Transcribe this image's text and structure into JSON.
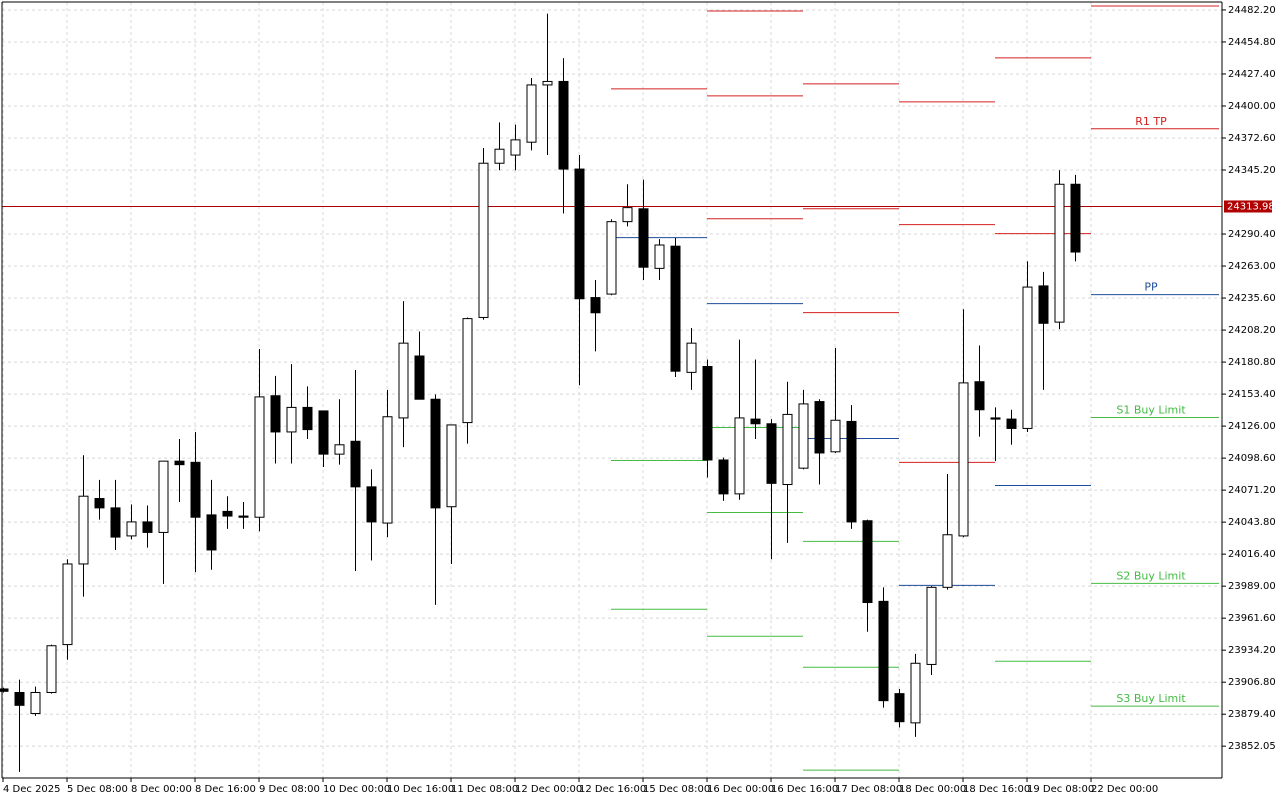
{
  "chart_data": {
    "type": "candlestick",
    "categories": [
      "4 Dec 2025",
      null,
      null,
      null,
      "5 Dec 08:00",
      null,
      null,
      null,
      "8 Dec 00:00",
      null,
      null,
      null,
      "8 Dec 16:00",
      null,
      null,
      null,
      "9 Dec 08:00",
      null,
      null,
      null,
      "10 Dec 00:00",
      null,
      null,
      null,
      "10 Dec 16:00",
      null,
      null,
      null,
      "11 Dec 08:00",
      null,
      null,
      null,
      "12 Dec 00:00",
      null,
      null,
      null,
      "12 Dec 16:00",
      null,
      null,
      null,
      "15 Dec 08:00",
      null,
      null,
      null,
      "16 Dec 00:00",
      null,
      null,
      null,
      "16 Dec 16:00",
      null,
      null,
      null,
      "17 Dec 08:00",
      null,
      null,
      null,
      "18 Dec 00:00",
      null,
      null,
      null,
      "18 Dec 16:00",
      null,
      null,
      null,
      "19 Dec 08:00",
      null,
      null,
      null,
      "22 Dec 00:00"
    ],
    "open": [
      23901,
      23898,
      23880,
      23898,
      23939,
      24008,
      24064,
      24056,
      24032,
      24044,
      24035,
      24096,
      24095,
      24050,
      24053,
      24049,
      24048,
      24152,
      24121,
      24142,
      24139,
      24102,
      24113,
      24074,
      24043,
      24133,
      24186,
      24149,
      24057,
      24129,
      24219,
      24351,
      24358,
      24369,
      24418,
      24421,
      24346,
      24236,
      24239,
      24301,
      24312,
      24261,
      24280,
      24172,
      24177,
      24097,
      24068,
      24132,
      24128,
      24076,
      24090,
      24147,
      24104,
      24130,
      24045,
      23976,
      23897,
      23872,
      23922,
      23988,
      24032,
      24164,
      24133,
      24132,
      24124,
      24246,
      24215,
      24333,
      null
    ],
    "high": [
      23902,
      23909,
      23903,
      23939,
      24012,
      24101,
      24080,
      24080,
      24059,
      24058,
      24096,
      24115,
      24121,
      24080,
      24066,
      24061,
      24192,
      24169,
      24179,
      24160,
      24139,
      24149,
      24174,
      24089,
      24157,
      24233,
      24207,
      24153,
      24127,
      24219,
      24364,
      24386,
      24384,
      24424,
      24479,
      24441,
      24358,
      24251,
      24303,
      24333,
      24337,
      24286,
      24287,
      24210,
      24183,
      24099,
      24200,
      24183,
      24132,
      24164,
      24157,
      24149,
      24193,
      24144,
      24046,
      23988,
      23901,
      23931,
      23989,
      24085,
      24226,
      24195,
      24142,
      24140,
      24267,
      24258,
      24345,
      24341,
      null
    ],
    "low": [
      23898,
      23830,
      23878,
      23897,
      23926,
      23980,
      24046,
      24020,
      24029,
      24022,
      23991,
      24061,
      24001,
      24003,
      24038,
      24038,
      24036,
      24094,
      24094,
      24115,
      24091,
      24093,
      24002,
      24011,
      24031,
      24108,
      24149,
      23973,
      24008,
      24111,
      24217,
      24345,
      24345,
      24362,
      24358,
      24308,
      24161,
      24190,
      24238,
      24297,
      24251,
      24251,
      24168,
      24157,
      24082,
      24062,
      24063,
      24115,
      24012,
      24026,
      24089,
      24076,
      24103,
      24038,
      23950,
      23885,
      23868,
      23860,
      23913,
      23986,
      24031,
      24117,
      24096,
      24110,
      24121,
      24157,
      24209,
      24267,
      null
    ],
    "close": [
      23899,
      23887,
      23898,
      23938,
      24008,
      24066,
      24056,
      24031,
      24044,
      24035,
      24096,
      24093,
      24048,
      24020,
      24049,
      24048,
      24151,
      24121,
      24142,
      24123,
      24102,
      24110,
      24074,
      24044,
      24134,
      24197,
      24149,
      24056,
      24127,
      24218,
      24351,
      24363,
      24371,
      24418,
      24421,
      24346,
      24235,
      24223,
      24301,
      24313,
      24262,
      24281,
      24173,
      24197,
      24097,
      24068,
      24133,
      24128,
      24077,
      24136,
      24145,
      24103,
      24131,
      24044,
      23975,
      23891,
      23873,
      23923,
      23988,
      24033,
      24163,
      24140,
      24132,
      24124,
      24245,
      24214,
      24333,
      24275,
      null
    ],
    "bull_color": "#ffffff",
    "bear_color": "#000000",
    "ylim": [
      23824.8,
      24489.0
    ],
    "yticks": [
      {
        "value": 24482.2,
        "label": "24482.20"
      },
      {
        "value": 24454.8,
        "label": "24454.80"
      },
      {
        "value": 24427.4,
        "label": "24427.40"
      },
      {
        "value": 24400,
        "label": "24400.00"
      },
      {
        "value": 24372.6,
        "label": "24372.60"
      },
      {
        "value": 24345.2,
        "label": "24345.20"
      },
      {
        "value": 24290.4,
        "label": "24290.40"
      },
      {
        "value": 24263,
        "label": "24263.00"
      },
      {
        "value": 24235.6,
        "label": "24235.60"
      },
      {
        "value": 24208.2,
        "label": "24208.20"
      },
      {
        "value": 24180.8,
        "label": "24180.80"
      },
      {
        "value": 24153.4,
        "label": "24153.40"
      },
      {
        "value": 24126,
        "label": "24126.00"
      },
      {
        "value": 24098.6,
        "label": "24098.60"
      },
      {
        "value": 24071.2,
        "label": "24071.20"
      },
      {
        "value": 24043.8,
        "label": "24043.80"
      },
      {
        "value": 24016.4,
        "label": "24016.40"
      },
      {
        "value": 23989,
        "label": "23989.00"
      },
      {
        "value": 23961.6,
        "label": "23961.60"
      },
      {
        "value": 23934.2,
        "label": "23934.20"
      },
      {
        "value": 23906.8,
        "label": "23906.80"
      },
      {
        "value": 23879.4,
        "label": "23879.40"
      },
      {
        "value": 23852.05,
        "label": "23852.05"
      }
    ],
    "grid": true,
    "last_price": 24313.98,
    "last_price_color": "#b00000",
    "levels": [
      {
        "x": [
          38,
          44
        ],
        "lines": [
          {
            "value": 24414.6,
            "color": "#d42020"
          },
          {
            "value": 24287.3,
            "color": "#1f4e9c"
          },
          {
            "value": 24096.6,
            "color": "#44bb44"
          },
          {
            "value": 23969.2,
            "color": "#44bb44"
          }
        ]
      },
      {
        "x": [
          44,
          50
        ],
        "lines": [
          {
            "value": 24481.3,
            "color": "#d42020"
          },
          {
            "value": 24408.7,
            "color": "#d42020"
          },
          {
            "value": 24303.5,
            "color": "#d42020"
          },
          {
            "value": 24230.8,
            "color": "#1f4e9c"
          },
          {
            "value": 24124.8,
            "color": "#44bb44"
          },
          {
            "value": 24052.1,
            "color": "#44bb44"
          },
          {
            "value": 23946.1,
            "color": "#44bb44"
          }
        ]
      },
      {
        "x": [
          50,
          56
        ],
        "lines": [
          {
            "value": 24418.9,
            "color": "#d42020"
          },
          {
            "value": 24312.0,
            "color": "#d42020"
          },
          {
            "value": 24223.1,
            "color": "#d42020"
          },
          {
            "value": 24115.4,
            "color": "#1f4e9c"
          },
          {
            "value": 24027.3,
            "color": "#44bb44"
          },
          {
            "value": 23919.6,
            "color": "#44bb44"
          },
          {
            "value": 23831.5,
            "color": "#44bb44"
          }
        ]
      },
      {
        "x": [
          56,
          62
        ],
        "lines": [
          {
            "value": 24403.5,
            "color": "#d42020"
          },
          {
            "value": 24298.4,
            "color": "#d42020"
          },
          {
            "value": 24094.9,
            "color": "#d42020"
          },
          {
            "value": 23989.7,
            "color": "#1f4e9c"
          }
        ]
      },
      {
        "x": [
          62,
          68
        ],
        "lines": [
          {
            "value": 24441.2,
            "color": "#d42020"
          },
          {
            "value": 24290.7,
            "color": "#d42020"
          },
          {
            "value": 24075.2,
            "color": "#1f4e9c"
          },
          {
            "value": 23924.7,
            "color": "#44bb44"
          }
        ]
      },
      {
        "x": [
          68,
          76
        ],
        "lines": [
          {
            "value": 24485.6,
            "color": "#d42020"
          },
          {
            "value": 24380.5,
            "color": "#d42020",
            "label": "R1 TP"
          },
          {
            "value": 24238.5,
            "color": "#1f4e9c",
            "label": "PP"
          },
          {
            "value": 24133.4,
            "color": "#44bb44",
            "label": "S1 Buy Limit"
          },
          {
            "value": 23991.4,
            "color": "#44bb44",
            "label": "S2 Buy Limit"
          },
          {
            "value": 23886.3,
            "color": "#44bb44",
            "label": "S3 Buy Limit"
          }
        ]
      }
    ]
  }
}
